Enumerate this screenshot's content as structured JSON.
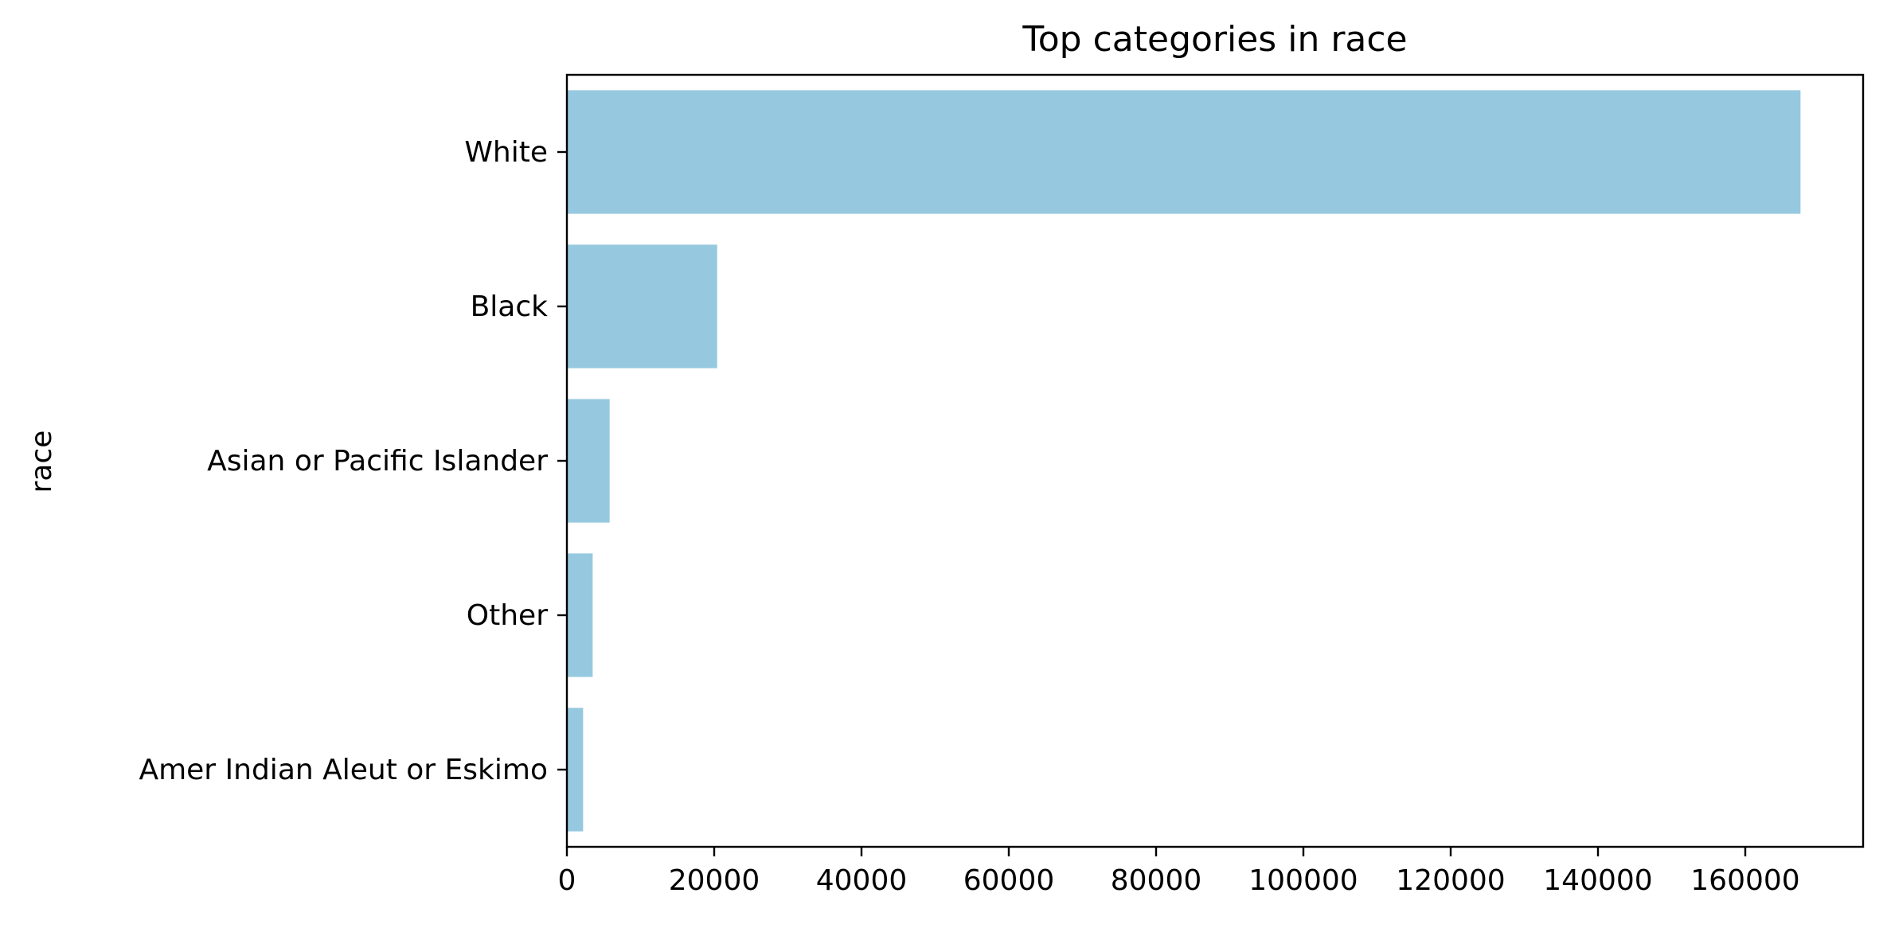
{
  "chart_data": {
    "type": "bar",
    "orientation": "horizontal",
    "title": "Top categories in race",
    "xlabel": "",
    "ylabel": "race",
    "categories": [
      "White",
      "Black",
      "Asian or Pacific Islander",
      "Other",
      "Amer Indian Aleut or Eskimo"
    ],
    "values": [
      167500,
      20400,
      5800,
      3500,
      2200
    ],
    "xlim": [
      0,
      176000
    ],
    "xticks": [
      0,
      20000,
      40000,
      60000,
      80000,
      100000,
      120000,
      140000,
      160000
    ],
    "bar_color": "#96c9df",
    "grid": false,
    "legend": "none"
  }
}
